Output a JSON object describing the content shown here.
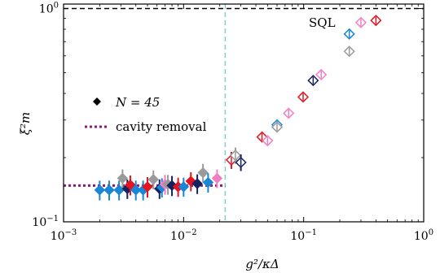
{
  "chart_data": {
    "type": "scatter",
    "xscale": "log",
    "yscale": "log",
    "xlim": [
      0.001,
      1
    ],
    "ylim": [
      0.1,
      1.05
    ],
    "xlabel": "g²/κΔ",
    "ylabel": "ξ²m",
    "xtick_labels": [
      {
        "value": 0.001,
        "base": "10",
        "exp": "−3"
      },
      {
        "value": 0.01,
        "base": "10",
        "exp": "−2"
      },
      {
        "value": 0.1,
        "base": "10",
        "exp": "−1"
      },
      {
        "value": 1,
        "base": "10",
        "exp": "0"
      }
    ],
    "ytick_labels": [
      {
        "value": 0.1,
        "base": "10",
        "exp": "−1"
      },
      {
        "value": 1,
        "base": "10",
        "exp": "0"
      }
    ],
    "sql": {
      "y": 1.0,
      "label": "SQL"
    },
    "threshold_x": 0.0222,
    "cavity_removal": {
      "y": 0.148,
      "x_range": [
        0.001,
        0.0222
      ]
    },
    "legend": {
      "n_label": "N = 45",
      "cavity_label": "cavity removal",
      "placement": "left-middle"
    },
    "colors": {
      "blue": "#1a86d6",
      "navy": "#16225e",
      "red": "#e3141f",
      "gray": "#9a9a9a",
      "pink": "#f07ec3",
      "sql_line": "#000000",
      "threshold": "#7fd1cc",
      "cavity": "#8b1a7e"
    },
    "series": [
      {
        "filled": true,
        "points": [
          {
            "x": 0.002,
            "y": 0.141,
            "err": 0.015,
            "color": "blue"
          },
          {
            "x": 0.0024,
            "y": 0.141,
            "err": 0.015,
            "color": "blue"
          },
          {
            "x": 0.0029,
            "y": 0.141,
            "err": 0.015,
            "color": "blue"
          },
          {
            "x": 0.0031,
            "y": 0.16,
            "err": 0.016,
            "color": "gray"
          },
          {
            "x": 0.0034,
            "y": 0.143,
            "err": 0.015,
            "color": "navy"
          },
          {
            "x": 0.0036,
            "y": 0.149,
            "err": 0.016,
            "color": "red"
          },
          {
            "x": 0.004,
            "y": 0.141,
            "err": 0.015,
            "color": "blue"
          },
          {
            "x": 0.0046,
            "y": 0.141,
            "err": 0.015,
            "color": "blue"
          },
          {
            "x": 0.005,
            "y": 0.146,
            "err": 0.016,
            "color": "red"
          },
          {
            "x": 0.0056,
            "y": 0.158,
            "err": 0.016,
            "color": "gray"
          },
          {
            "x": 0.0063,
            "y": 0.143,
            "err": 0.015,
            "color": "navy"
          },
          {
            "x": 0.0066,
            "y": 0.145,
            "err": 0.015,
            "color": "blue"
          },
          {
            "x": 0.007,
            "y": 0.15,
            "err": 0.016,
            "color": "pink"
          },
          {
            "x": 0.0074,
            "y": 0.15,
            "err": 0.016,
            "color": "gray"
          },
          {
            "x": 0.008,
            "y": 0.148,
            "err": 0.016,
            "color": "navy"
          },
          {
            "x": 0.009,
            "y": 0.146,
            "err": 0.015,
            "color": "red"
          },
          {
            "x": 0.01,
            "y": 0.146,
            "err": 0.015,
            "color": "blue"
          },
          {
            "x": 0.0115,
            "y": 0.155,
            "err": 0.016,
            "color": "red"
          },
          {
            "x": 0.013,
            "y": 0.151,
            "err": 0.016,
            "color": "navy"
          },
          {
            "x": 0.0145,
            "y": 0.17,
            "err": 0.017,
            "color": "gray"
          },
          {
            "x": 0.016,
            "y": 0.153,
            "err": 0.016,
            "color": "blue"
          },
          {
            "x": 0.019,
            "y": 0.16,
            "err": 0.016,
            "color": "pink"
          }
        ]
      },
      {
        "filled": false,
        "points": [
          {
            "x": 0.025,
            "y": 0.195,
            "err": 0.018,
            "color": "red"
          },
          {
            "x": 0.027,
            "y": 0.205,
            "err": 0.018,
            "color": "gray"
          },
          {
            "x": 0.03,
            "y": 0.19,
            "err": 0.017,
            "color": "navy"
          },
          {
            "x": 0.045,
            "y": 0.25,
            "err": 0,
            "color": "red"
          },
          {
            "x": 0.05,
            "y": 0.24,
            "err": 0,
            "color": "pink"
          },
          {
            "x": 0.06,
            "y": 0.285,
            "err": 0,
            "color": "blue"
          },
          {
            "x": 0.06,
            "y": 0.278,
            "err": 0,
            "color": "gray"
          },
          {
            "x": 0.075,
            "y": 0.323,
            "err": 0,
            "color": "pink"
          },
          {
            "x": 0.099,
            "y": 0.385,
            "err": 0,
            "color": "red"
          },
          {
            "x": 0.12,
            "y": 0.46,
            "err": 0,
            "color": "navy"
          },
          {
            "x": 0.14,
            "y": 0.49,
            "err": 0,
            "color": "pink"
          },
          {
            "x": 0.24,
            "y": 0.63,
            "err": 0,
            "color": "gray"
          },
          {
            "x": 0.24,
            "y": 0.76,
            "err": 0,
            "color": "blue"
          },
          {
            "x": 0.3,
            "y": 0.86,
            "err": 0,
            "color": "pink"
          },
          {
            "x": 0.4,
            "y": 0.88,
            "err": 0,
            "color": "red"
          }
        ]
      }
    ]
  }
}
